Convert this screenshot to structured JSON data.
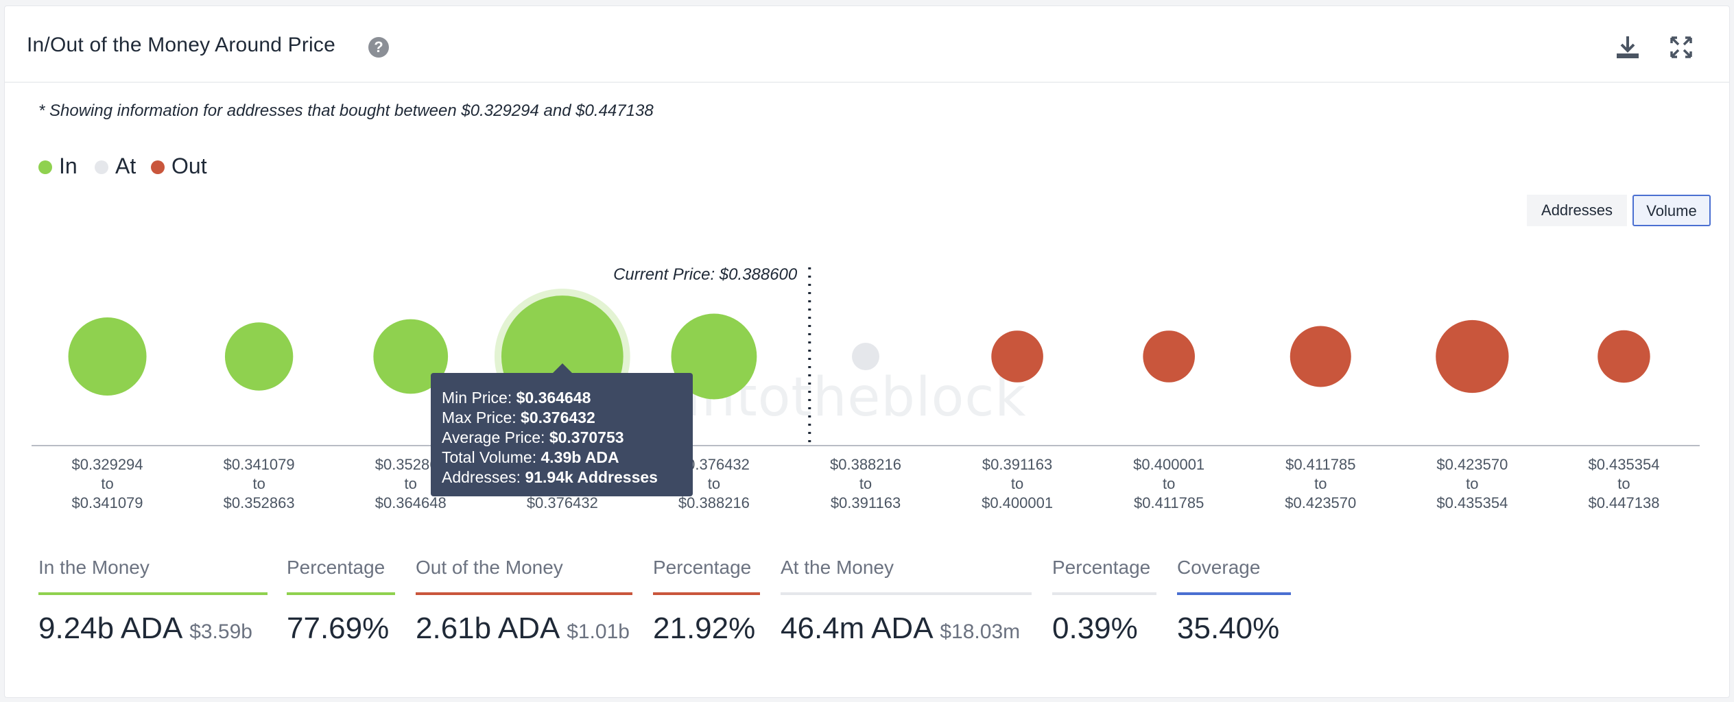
{
  "header": {
    "title": "In/Out of the Money Around Price",
    "help_icon": "?",
    "icons": [
      "download-icon",
      "expand-icon"
    ]
  },
  "note": "* Showing information for addresses that bought between $0.329294 and $0.447138",
  "legend": [
    {
      "label": "In",
      "color": "#8fd14f"
    },
    {
      "label": "At",
      "color": "#e5e7eb"
    },
    {
      "label": "Out",
      "color": "#c9563c"
    }
  ],
  "toggles": {
    "addresses": "Addresses",
    "volume": "Volume",
    "active": "Volume"
  },
  "watermark": "intotheblock",
  "chart_data": {
    "type": "bubble",
    "current_price_label": "Current Price: $0.388600",
    "current_price": 0.3886,
    "colors": {
      "In": "#8fd14f",
      "At": "#e5e7eb",
      "Out": "#c9563c"
    },
    "buckets": [
      {
        "label": [
          "$0.329294",
          "to",
          "$0.341079"
        ],
        "min": 0.329294,
        "max": 0.341079,
        "status": "In",
        "size": 1.0
      },
      {
        "label": [
          "$0.341079",
          "to",
          "$0.352863"
        ],
        "min": 0.341079,
        "max": 0.352863,
        "status": "In",
        "size": 0.76
      },
      {
        "label": [
          "$0.352863",
          "to",
          "$0.364648"
        ],
        "min": 0.352863,
        "max": 0.364648,
        "status": "In",
        "size": 0.91
      },
      {
        "label": [
          "$0.364648",
          "to",
          "$0.376432"
        ],
        "min": 0.364648,
        "max": 0.376432,
        "status": "In",
        "size": 2.43
      },
      {
        "label": [
          "$0.376432",
          "to",
          "$0.388216"
        ],
        "min": 0.376432,
        "max": 0.388216,
        "status": "In",
        "size": 1.2
      },
      {
        "label": [
          "$0.388216",
          "to",
          "$0.391163"
        ],
        "min": 0.388216,
        "max": 0.391163,
        "status": "At",
        "size": 0.07
      },
      {
        "label": [
          "$0.391163",
          "to",
          "$0.400001"
        ],
        "min": 0.391163,
        "max": 0.400001,
        "status": "Out",
        "size": 0.44
      },
      {
        "label": [
          "$0.400001",
          "to",
          "$0.411785"
        ],
        "min": 0.400001,
        "max": 0.411785,
        "status": "Out",
        "size": 0.44
      },
      {
        "label": [
          "$0.411785",
          "to",
          "$0.423570"
        ],
        "min": 0.411785,
        "max": 0.42357,
        "status": "Out",
        "size": 0.61
      },
      {
        "label": [
          "$0.423570",
          "to",
          "$0.435354"
        ],
        "min": 0.42357,
        "max": 0.435354,
        "status": "Out",
        "size": 0.87
      },
      {
        "label": [
          "$0.435354",
          "to",
          "$0.447138"
        ],
        "min": 0.435354,
        "max": 0.447138,
        "status": "Out",
        "size": 0.45
      }
    ]
  },
  "tooltip": {
    "bucket": 3,
    "rows": [
      {
        "label": "Min Price: ",
        "value": "$0.364648"
      },
      {
        "label": "Max Price: ",
        "value": "$0.376432"
      },
      {
        "label": "Average Price: ",
        "value": "$0.370753"
      },
      {
        "label": "Total Volume: ",
        "value": "4.39b ADA"
      },
      {
        "label": "Addresses: ",
        "value": "91.94k Addresses"
      }
    ]
  },
  "stats": [
    {
      "label": "In the Money",
      "value": "9.24b ADA",
      "sub": "$3.59b",
      "color": "#8fd14f"
    },
    {
      "label": "Percentage",
      "value": "77.69%",
      "sub": "",
      "color": "#8fd14f"
    },
    {
      "label": "Out of the Money",
      "value": "2.61b ADA",
      "sub": "$1.01b",
      "color": "#c9563c"
    },
    {
      "label": "Percentage",
      "value": "21.92%",
      "sub": "",
      "color": "#c9563c"
    },
    {
      "label": "At the Money",
      "value": "46.4m ADA",
      "sub": "$18.03m",
      "color": "#e5e7eb"
    },
    {
      "label": "Percentage",
      "value": "0.39%",
      "sub": "",
      "color": "#e5e7eb"
    },
    {
      "label": "Coverage",
      "value": "35.40%",
      "sub": "",
      "color": "#4a6fd1"
    }
  ]
}
